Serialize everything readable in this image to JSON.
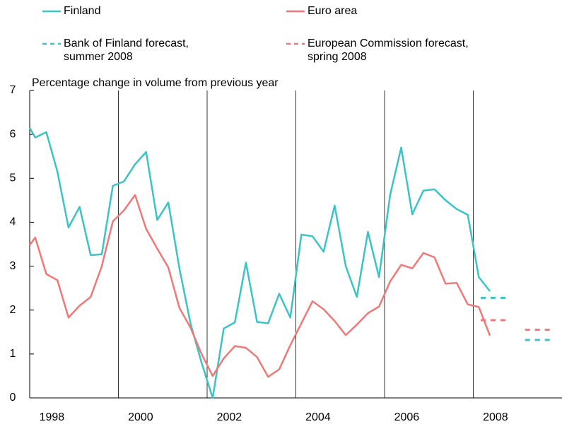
{
  "chart_data": {
    "type": "line",
    "y_label": "Percentage change in volume from previous year",
    "xlim": [
      1998,
      2010
    ],
    "xticks": [
      1998,
      2000,
      2002,
      2004,
      2006,
      2008
    ],
    "ylim": [
      0,
      7
    ],
    "yticks": [
      0,
      1,
      2,
      3,
      4,
      5,
      6,
      7
    ],
    "grid": "x",
    "series": [
      {
        "name": "Finland",
        "color": "#3cc3c3",
        "dash": false,
        "x": [
          1998,
          1998.125,
          1998.375,
          1998.625,
          1998.875,
          1999.125,
          1999.375,
          1999.625,
          1999.875,
          2000.125,
          2000.375,
          2000.625,
          2000.875,
          2001.125,
          2001.375,
          2001.625,
          2001.875,
          2002.125,
          2002.375,
          2002.625,
          2002.875,
          2003.125,
          2003.375,
          2003.625,
          2003.875,
          2004.125,
          2004.375,
          2004.625,
          2004.875,
          2005.125,
          2005.375,
          2005.625,
          2005.875,
          2006.125,
          2006.375,
          2006.625,
          2006.875,
          2007.125,
          2007.375,
          2007.625,
          2007.875,
          2008.125,
          2008.375
        ],
        "values": [
          6.15,
          5.93,
          6.05,
          5.15,
          3.88,
          4.35,
          3.25,
          3.27,
          4.83,
          4.93,
          5.32,
          5.6,
          4.05,
          4.45,
          2.95,
          1.7,
          0.8,
          0.0,
          1.58,
          1.72,
          3.08,
          1.73,
          1.7,
          2.37,
          1.83,
          3.72,
          3.68,
          3.33,
          4.38,
          3.0,
          2.3,
          3.78,
          2.75,
          4.62,
          5.7,
          4.18,
          4.72,
          4.75,
          4.5,
          4.3,
          4.17,
          2.75,
          2.43
        ]
      },
      {
        "name": "Euro area",
        "color": "#f07878",
        "dash": false,
        "x": [
          1998,
          1998.125,
          1998.375,
          1998.625,
          1998.875,
          1999.125,
          1999.375,
          1999.625,
          1999.875,
          2000.125,
          2000.375,
          2000.625,
          2000.875,
          2001.125,
          2001.375,
          2001.625,
          2001.875,
          2002.125,
          2002.375,
          2002.625,
          2002.875,
          2003.125,
          2003.375,
          2003.625,
          2003.875,
          2004.125,
          2004.375,
          2004.625,
          2004.875,
          2005.125,
          2005.375,
          2005.625,
          2005.875,
          2006.125,
          2006.375,
          2006.625,
          2006.875,
          2007.125,
          2007.375,
          2007.625,
          2007.875,
          2008.125,
          2008.375
        ],
        "values": [
          3.48,
          3.65,
          2.82,
          2.68,
          1.83,
          2.1,
          2.3,
          3.0,
          4.02,
          4.27,
          4.62,
          3.85,
          3.4,
          2.97,
          2.05,
          1.6,
          1.0,
          0.5,
          0.9,
          1.18,
          1.14,
          0.93,
          0.48,
          0.65,
          1.2,
          1.7,
          2.2,
          2.02,
          1.75,
          1.43,
          1.67,
          1.93,
          2.08,
          2.65,
          3.03,
          2.95,
          3.3,
          3.2,
          2.6,
          2.62,
          2.13,
          2.07,
          1.42
        ]
      },
      {
        "name": "Bank of Finland forecast,\nsummer 2008",
        "color": "#3cc3c3",
        "dash": true,
        "x": [
          2008.5,
          2009.5
        ],
        "values": [
          2.28,
          1.32
        ]
      },
      {
        "name": "European Commission forecast,\nspring 2008",
        "color": "#f07878",
        "dash": true,
        "x": [
          2008.5,
          2009.5
        ],
        "values": [
          1.77,
          1.55
        ]
      }
    ]
  }
}
